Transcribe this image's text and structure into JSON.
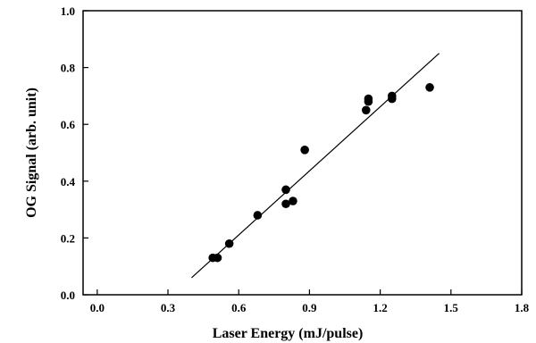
{
  "chart_data": {
    "type": "scatter",
    "title": "",
    "xlabel": "Laser Energy  (mJ/pulse)",
    "ylabel": "OG Signal  (arb. unit)",
    "xlim": [
      -0.06,
      1.8
    ],
    "ylim": [
      0.0,
      1.0
    ],
    "xticks": [
      "0.0",
      "0.3",
      "0.6",
      "0.9",
      "1.2",
      "1.5",
      "1.8"
    ],
    "yticks": [
      "0.0",
      "0.2",
      "0.4",
      "0.6",
      "0.8",
      "1.0"
    ],
    "grid": false,
    "legend": "none",
    "series": [
      {
        "points": [
          {
            "x": 0.49,
            "y": 0.13
          },
          {
            "x": 0.51,
            "y": 0.13
          },
          {
            "x": 0.56,
            "y": 0.18
          },
          {
            "x": 0.68,
            "y": 0.28
          },
          {
            "x": 0.8,
            "y": 0.37
          },
          {
            "x": 0.8,
            "y": 0.32
          },
          {
            "x": 0.83,
            "y": 0.33
          },
          {
            "x": 0.88,
            "y": 0.51
          },
          {
            "x": 1.14,
            "y": 0.65
          },
          {
            "x": 1.15,
            "y": 0.68
          },
          {
            "x": 1.15,
            "y": 0.69
          },
          {
            "x": 1.25,
            "y": 0.69
          },
          {
            "x": 1.25,
            "y": 0.7
          },
          {
            "x": 1.41,
            "y": 0.73
          }
        ]
      }
    ],
    "fit_line": {
      "x1": 0.4,
      "y1": 0.06,
      "x2": 1.45,
      "y2": 0.85
    },
    "colors": {
      "marker": "#000000",
      "line": "#000000",
      "axis": "#000000"
    }
  }
}
